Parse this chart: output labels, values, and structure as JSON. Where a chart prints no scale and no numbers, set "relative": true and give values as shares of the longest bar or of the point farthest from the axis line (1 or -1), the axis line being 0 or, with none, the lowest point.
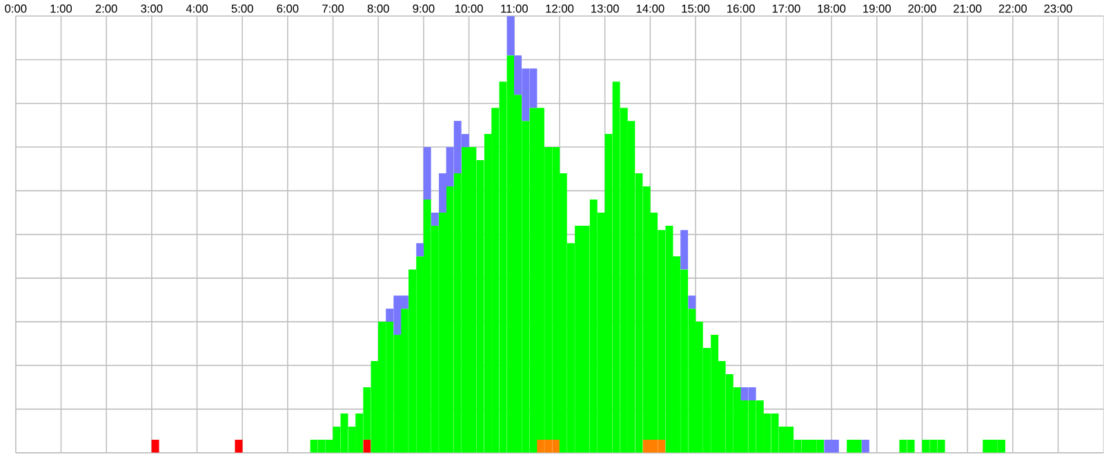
{
  "chart_data": {
    "type": "bar",
    "stacked": true,
    "relative": true,
    "grid": true,
    "x": [
      3.08,
      4.92,
      6.58,
      6.75,
      6.92,
      7.08,
      7.25,
      7.42,
      7.58,
      7.75,
      7.92,
      8.08,
      8.25,
      8.42,
      8.58,
      8.75,
      8.92,
      9.08,
      9.25,
      9.42,
      9.58,
      9.75,
      9.92,
      10.08,
      10.25,
      10.42,
      10.58,
      10.75,
      10.92,
      11.08,
      11.25,
      11.42,
      11.58,
      11.75,
      11.92,
      12.08,
      12.25,
      12.42,
      12.58,
      12.75,
      12.92,
      13.08,
      13.25,
      13.42,
      13.58,
      13.75,
      13.92,
      14.08,
      14.25,
      14.42,
      14.58,
      14.75,
      14.92,
      15.08,
      15.25,
      15.42,
      15.58,
      15.75,
      15.92,
      16.08,
      16.25,
      16.42,
      16.58,
      16.75,
      16.92,
      17.08,
      17.25,
      17.42,
      17.58,
      17.75,
      17.92,
      18.08,
      18.42,
      18.58,
      18.75,
      19.58,
      19.75,
      20.08,
      20.25,
      20.42,
      21.42,
      21.58,
      21.75
    ],
    "xlim": [
      0,
      24
    ],
    "xticks": [
      {
        "value": 0,
        "label": "0:00"
      },
      {
        "value": 1,
        "label": "1:00"
      },
      {
        "value": 2,
        "label": "2:00"
      },
      {
        "value": 3,
        "label": "3:00"
      },
      {
        "value": 4,
        "label": "4:00"
      },
      {
        "value": 5,
        "label": "5:00"
      },
      {
        "value": 6,
        "label": "6:00"
      },
      {
        "value": 7,
        "label": "7:00"
      },
      {
        "value": 8,
        "label": "8:00"
      },
      {
        "value": 9,
        "label": "9:00"
      },
      {
        "value": 10,
        "label": "10:00"
      },
      {
        "value": 11,
        "label": "11:00"
      },
      {
        "value": 12,
        "label": "12:00"
      },
      {
        "value": 13,
        "label": "13:00"
      },
      {
        "value": 14,
        "label": "14:00"
      },
      {
        "value": 15,
        "label": "15:00"
      },
      {
        "value": 16,
        "label": "16:00"
      },
      {
        "value": 17,
        "label": "17:00"
      },
      {
        "value": 18,
        "label": "18:00"
      },
      {
        "value": 19,
        "label": "19:00"
      },
      {
        "value": 20,
        "label": "20:00"
      },
      {
        "value": 21,
        "label": "21:00"
      },
      {
        "value": 22,
        "label": "22:00"
      },
      {
        "value": 23,
        "label": "23:00"
      }
    ],
    "series": [
      {
        "color": "#ff8000",
        "values": [
          0,
          0,
          0,
          0,
          0,
          0,
          0,
          0,
          0,
          0,
          0,
          0,
          0,
          0,
          0,
          0,
          0,
          0,
          0,
          0,
          0,
          0,
          0,
          0,
          0,
          0,
          0,
          0,
          0,
          0,
          0,
          0,
          0.03,
          0.03,
          0.03,
          0,
          0,
          0,
          0,
          0,
          0,
          0,
          0,
          0,
          0,
          0,
          0.03,
          0.03,
          0.03,
          0,
          0,
          0,
          0,
          0,
          0,
          0,
          0,
          0,
          0,
          0,
          0,
          0,
          0,
          0,
          0,
          0,
          0,
          0,
          0,
          0,
          0,
          0,
          0,
          0,
          0,
          0,
          0,
          0,
          0,
          0,
          0,
          0,
          0
        ]
      },
      {
        "color": "#ff0000",
        "values": [
          0.03,
          0.03,
          0,
          0,
          0,
          0,
          0,
          0,
          0,
          0.03,
          0,
          0,
          0,
          0,
          0,
          0,
          0,
          0,
          0,
          0,
          0,
          0,
          0,
          0,
          0,
          0,
          0,
          0,
          0,
          0,
          0,
          0,
          0,
          0,
          0,
          0,
          0,
          0,
          0,
          0,
          0,
          0,
          0,
          0,
          0,
          0,
          0,
          0,
          0,
          0,
          0,
          0,
          0,
          0,
          0,
          0,
          0,
          0,
          0,
          0,
          0,
          0,
          0,
          0,
          0,
          0,
          0,
          0,
          0,
          0,
          0,
          0,
          0,
          0,
          0,
          0,
          0,
          0,
          0,
          0,
          0,
          0,
          0
        ]
      },
      {
        "color": "#00ff00",
        "values": [
          0,
          0,
          0.03,
          0.03,
          0.03,
          0.06,
          0.09,
          0.06,
          0.09,
          0.12,
          0.21,
          0.3,
          0.3,
          0.27,
          0.33,
          0.42,
          0.45,
          0.58,
          0.52,
          0.55,
          0.61,
          0.64,
          0.7,
          0.7,
          0.67,
          0.73,
          0.79,
          0.85,
          0.91,
          0.82,
          0.76,
          0.79,
          0.76,
          0.67,
          0.67,
          0.64,
          0.48,
          0.52,
          0.52,
          0.58,
          0.55,
          0.73,
          0.85,
          0.79,
          0.76,
          0.64,
          0.58,
          0.52,
          0.48,
          0.52,
          0.45,
          0.42,
          0.33,
          0.3,
          0.24,
          0.27,
          0.21,
          0.18,
          0.15,
          0.12,
          0.12,
          0.12,
          0.09,
          0.09,
          0.06,
          0.06,
          0.03,
          0.03,
          0.03,
          0.03,
          0,
          0,
          0.03,
          0.03,
          0,
          0.03,
          0.03,
          0.03,
          0.03,
          0.03,
          0.03,
          0.03,
          0.03
        ]
      },
      {
        "color": "#7878ff",
        "values": [
          0,
          0,
          0,
          0,
          0,
          0,
          0,
          0,
          0,
          0,
          0,
          0,
          0.03,
          0.09,
          0.03,
          0,
          0.03,
          0.12,
          0.03,
          0.09,
          0.09,
          0.12,
          0.03,
          0,
          0,
          0,
          0,
          0,
          0.09,
          0.09,
          0.12,
          0.09,
          0,
          0,
          0,
          0,
          0,
          0,
          0,
          0,
          0,
          0,
          0,
          0,
          0,
          0,
          0,
          0,
          0,
          0,
          0,
          0.09,
          0.03,
          0,
          0,
          0,
          0,
          0,
          0,
          0.03,
          0.03,
          0,
          0,
          0,
          0,
          0,
          0,
          0,
          0,
          0,
          0.03,
          0.03,
          0,
          0,
          0.03,
          0,
          0,
          0,
          0,
          0,
          0,
          0,
          0
        ]
      }
    ]
  }
}
